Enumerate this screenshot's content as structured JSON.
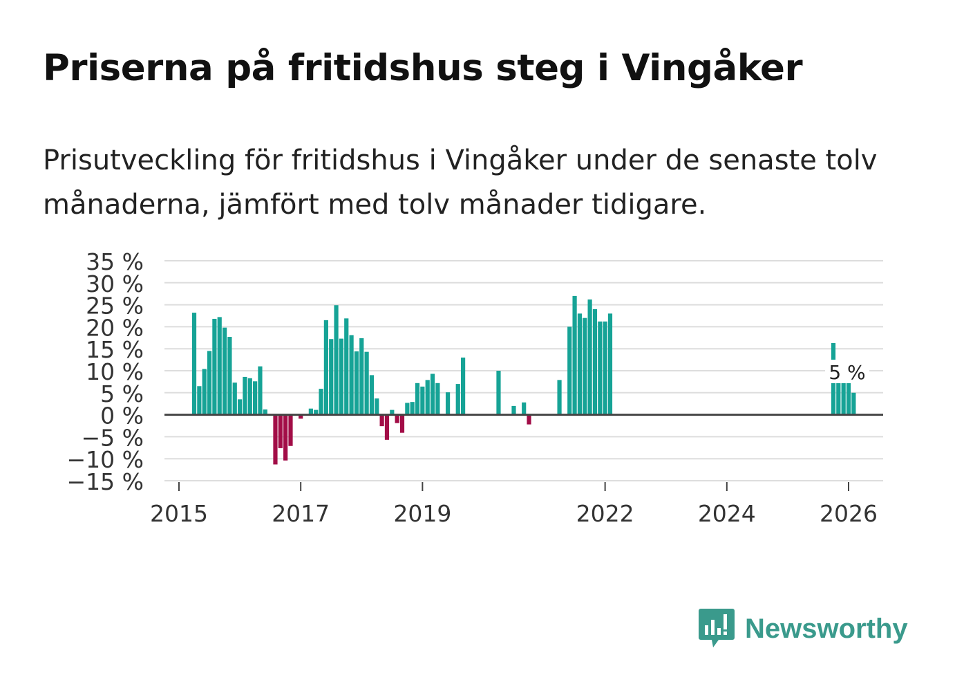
{
  "title": "Priserna på fritidshus steg i Vingåker",
  "subtitle": "Prisutveckling för fritidshus i Vingåker under de senaste tolv månaderna, jämfört med tolv månader tidigare.",
  "brand": {
    "name": "Newsworthy",
    "icon": "newsworthy-logo-icon",
    "color": "#3a9a8c"
  },
  "colors": {
    "positive": "#16a396",
    "negative": "#a20d47",
    "grid": "#dddddd",
    "zero_line": "#444444",
    "text": "#333333"
  },
  "chart_data": {
    "type": "bar",
    "title": "Priserna på fritidshus steg i Vingåker",
    "xlabel": "",
    "ylabel": "",
    "ylim": [
      -15,
      35
    ],
    "yticks": [
      35,
      30,
      25,
      20,
      15,
      10,
      5,
      0,
      -5,
      -10,
      -15
    ],
    "ytick_labels": [
      "35 %",
      "30 %",
      "25 %",
      "20 %",
      "15 %",
      "10 %",
      "5 %",
      "0 %",
      "−5 %",
      "−10 %",
      "−15 %"
    ],
    "xticks": [
      {
        "year": 2015,
        "label": "2015"
      },
      {
        "year": 2017,
        "label": "2017"
      },
      {
        "year": 2019,
        "label": "2019"
      },
      {
        "year": 2022,
        "label": "2022"
      },
      {
        "year": 2024,
        "label": "2024"
      },
      {
        "year": 2026,
        "label": "2026"
      }
    ],
    "annotation": {
      "text": "5 %",
      "date": "2026-01",
      "value": 5
    },
    "series": [
      {
        "name": "Prisutveckling",
        "points": [
          [
            "2015-04",
            23.2
          ],
          [
            "2015-05",
            6.5
          ],
          [
            "2015-06",
            10.4
          ],
          [
            "2015-07",
            14.5
          ],
          [
            "2015-08",
            21.8
          ],
          [
            "2015-09",
            22.2
          ],
          [
            "2015-10",
            19.8
          ],
          [
            "2015-11",
            17.7
          ],
          [
            "2015-12",
            7.3
          ],
          [
            "2016-01",
            3.5
          ],
          [
            "2016-02",
            8.6
          ],
          [
            "2016-03",
            8.3
          ],
          [
            "2016-04",
            7.6
          ],
          [
            "2016-05",
            11.0
          ],
          [
            "2016-06",
            1.2
          ],
          [
            "2016-08",
            -11.3
          ],
          [
            "2016-09",
            -7.6
          ],
          [
            "2016-10",
            -10.4
          ],
          [
            "2016-11",
            -7.1
          ],
          [
            "2017-01",
            -0.9
          ],
          [
            "2017-03",
            1.4
          ],
          [
            "2017-04",
            1.1
          ],
          [
            "2017-05",
            5.9
          ],
          [
            "2017-06",
            21.5
          ],
          [
            "2017-07",
            17.2
          ],
          [
            "2017-08",
            24.9
          ],
          [
            "2017-09",
            17.3
          ],
          [
            "2017-10",
            21.9
          ],
          [
            "2017-11",
            18.1
          ],
          [
            "2017-12",
            14.4
          ],
          [
            "2018-01",
            17.4
          ],
          [
            "2018-02",
            14.3
          ],
          [
            "2018-03",
            9.0
          ],
          [
            "2018-04",
            3.7
          ],
          [
            "2018-05",
            -2.6
          ],
          [
            "2018-06",
            -5.7
          ],
          [
            "2018-07",
            1.1
          ],
          [
            "2018-08",
            -1.9
          ],
          [
            "2018-09",
            -4.1
          ],
          [
            "2018-10",
            2.7
          ],
          [
            "2018-11",
            2.9
          ],
          [
            "2018-12",
            7.2
          ],
          [
            "2019-01",
            6.4
          ],
          [
            "2019-02",
            7.9
          ],
          [
            "2019-03",
            9.3
          ],
          [
            "2019-04",
            7.2
          ],
          [
            "2019-06",
            5.1
          ],
          [
            "2019-08",
            7.0
          ],
          [
            "2019-09",
            13.0
          ],
          [
            "2020-04",
            10.0
          ],
          [
            "2020-07",
            2.0
          ],
          [
            "2020-09",
            2.8
          ],
          [
            "2020-10",
            -2.2
          ],
          [
            "2021-04",
            7.9
          ],
          [
            "2021-06",
            20.0
          ],
          [
            "2021-07",
            27.0
          ],
          [
            "2021-08",
            23.0
          ],
          [
            "2021-09",
            22.0
          ],
          [
            "2021-10",
            26.2
          ],
          [
            "2021-11",
            24.0
          ],
          [
            "2021-12",
            21.2
          ],
          [
            "2022-01",
            21.2
          ],
          [
            "2022-02",
            23.0
          ],
          [
            "2025-10",
            16.3
          ],
          [
            "2025-11",
            7.3
          ],
          [
            "2025-12",
            7.5
          ],
          [
            "2026-01",
            8.0
          ],
          [
            "2026-02",
            5.0
          ]
        ]
      }
    ]
  }
}
